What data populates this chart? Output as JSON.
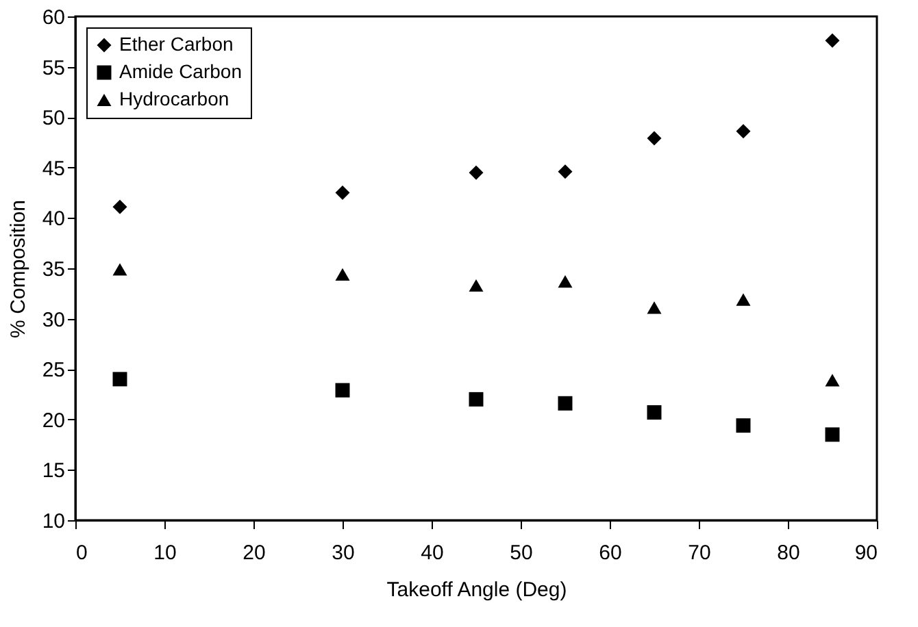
{
  "chart_data": {
    "type": "scatter",
    "xlabel": "Takeoff Angle (Deg)",
    "ylabel": "% Composition",
    "x": [
      5,
      30,
      45,
      55,
      65,
      75,
      85
    ],
    "series": [
      {
        "name": "Ether Carbon",
        "color": "#000000",
        "marker": "diamond",
        "values": [
          41.1,
          42.5,
          44.5,
          44.6,
          47.9,
          48.6,
          57.6
        ]
      },
      {
        "name": "Amide Carbon",
        "color": "#000000",
        "marker": "square",
        "values": [
          24.0,
          22.9,
          22.0,
          21.6,
          20.7,
          19.4,
          18.5
        ]
      },
      {
        "name": "Hydrocarbon",
        "color": "#000000",
        "marker": "triangle",
        "values": [
          34.9,
          34.4,
          33.3,
          33.7,
          31.1,
          31.9,
          23.9
        ]
      }
    ],
    "xlim": [
      0,
      90
    ],
    "xticks": [
      0,
      10,
      20,
      30,
      40,
      50,
      60,
      70,
      80,
      90
    ],
    "ylim": [
      10,
      60
    ],
    "yticks": [
      10,
      15,
      20,
      25,
      30,
      35,
      40,
      45,
      50,
      55,
      60
    ],
    "grid": false,
    "legend": "top left"
  }
}
